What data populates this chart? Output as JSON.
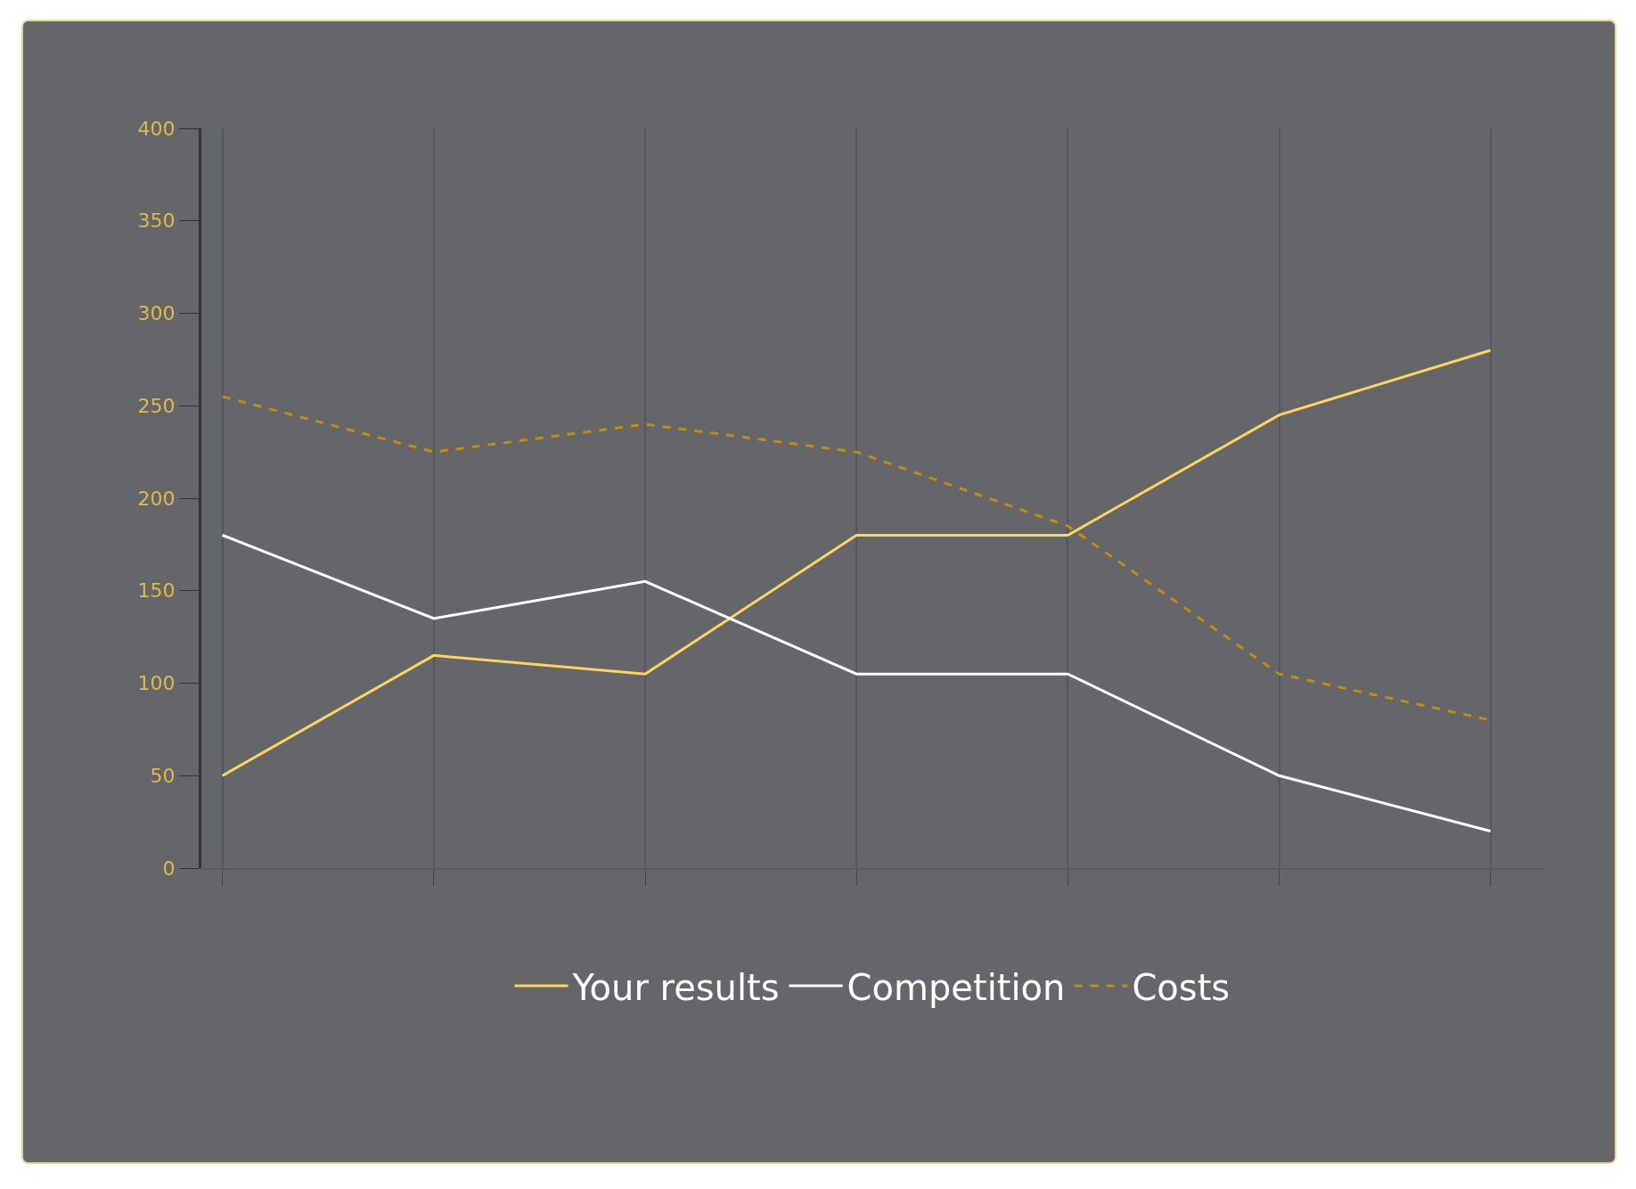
{
  "chart_data": {
    "type": "line",
    "categories": [
      null,
      null,
      null,
      null,
      null,
      null,
      null
    ],
    "series": [
      {
        "name": "Your results",
        "color": "#ffd45a",
        "values": [
          50,
          115,
          105,
          180,
          180,
          245,
          280
        ],
        "line_style": "solid"
      },
      {
        "name": "Competition",
        "color": "#ffffff",
        "values": [
          180,
          135,
          155,
          105,
          105,
          50,
          20
        ],
        "line_style": "solid"
      },
      {
        "name": "Costs",
        "color": "#c48a0a",
        "values": [
          255,
          225,
          240,
          225,
          185,
          105,
          80
        ],
        "line_style": "dashed"
      }
    ],
    "ylim": [
      0,
      400
    ],
    "yticks": [
      0,
      50,
      100,
      150,
      200,
      250,
      300,
      350,
      400
    ],
    "grid": "x",
    "legend": "bottom",
    "marker": "none",
    "tick_labels": "y"
  }
}
